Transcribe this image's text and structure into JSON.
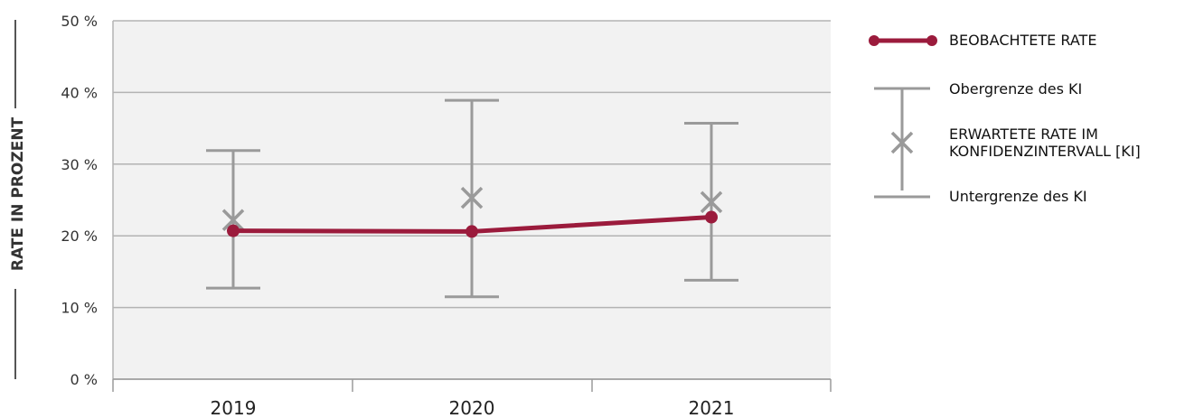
{
  "chart_data": {
    "type": "line",
    "ylabel": "RATE IN PROZENT",
    "categories": [
      "2019",
      "2020",
      "2021"
    ],
    "y_ticks": [
      "0 %",
      "10 %",
      "20 %",
      "30 %",
      "40 %",
      "50 %"
    ],
    "ylim": [
      0,
      50
    ],
    "grid": true,
    "legend_position": "right",
    "series": [
      {
        "name": "BEOBACHTETE RATE",
        "kind": "line",
        "color": "#9b1b3c",
        "values": [
          20.7,
          20.6,
          22.6
        ]
      },
      {
        "name": "ERWARTETE RATE IM KONFIDENZINTERVALL [KI]",
        "kind": "marker-x",
        "color": "#9a9a9a",
        "values": [
          22.2,
          25.3,
          24.7
        ]
      },
      {
        "name": "Obergrenze des KI",
        "kind": "error-upper",
        "color": "#9a9a9a",
        "values": [
          31.9,
          38.9,
          35.7
        ]
      },
      {
        "name": "Untergrenze des KI",
        "kind": "error-lower",
        "color": "#9a9a9a",
        "values": [
          12.7,
          11.5,
          13.8
        ]
      }
    ]
  },
  "legend": {
    "observed": "BEOBACHTETE RATE",
    "upper": "Obergrenze des KI",
    "expected_line1": "ERWARTETE RATE IM",
    "expected_line2": "KONFIDENZINTERVALL [KI]",
    "lower": "Untergrenze des KI"
  },
  "colors": {
    "plot_bg": "#f2f2f2",
    "grid": "#b3b3b3",
    "observed": "#9b1b3c",
    "interval": "#9a9a9a"
  }
}
